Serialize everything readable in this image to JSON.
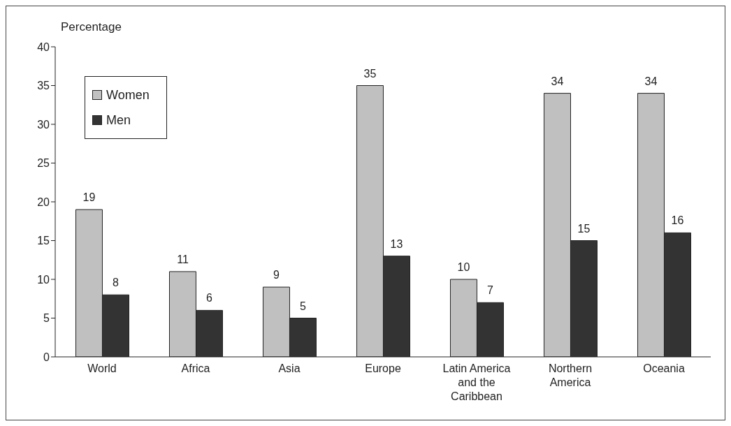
{
  "chart_data": {
    "type": "bar",
    "ylabel": "Percentage",
    "categories": [
      "World",
      "Africa",
      "Asia",
      "Europe",
      "Latin America and the Caribbean",
      "Northern America",
      "Oceania"
    ],
    "series": [
      {
        "name": "Women",
        "color": "#c0c0c0",
        "values": [
          19,
          11,
          9,
          35,
          10,
          34,
          34
        ]
      },
      {
        "name": "Men",
        "color": "#333333",
        "values": [
          8,
          6,
          5,
          13,
          7,
          15,
          16
        ]
      }
    ],
    "ylim": [
      0,
      40
    ],
    "yticks": [
      0,
      5,
      10,
      15,
      20,
      25,
      30,
      35,
      40
    ],
    "grid": false,
    "legend": "top left",
    "data_labels": true
  }
}
